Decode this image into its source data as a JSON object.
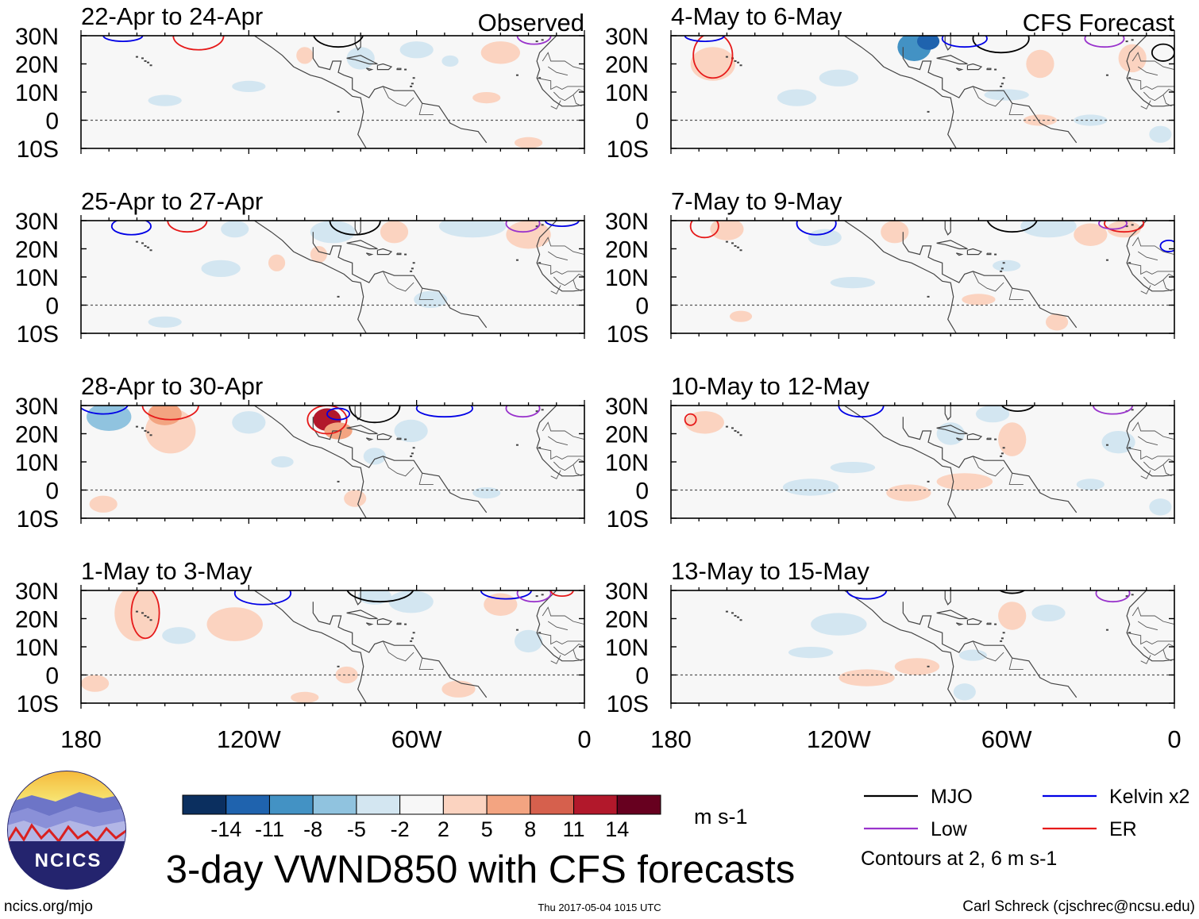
{
  "chart_data": {
    "type": "heatmap",
    "title": "3-day VWND850 with CFS forecasts",
    "variable": "VWND850",
    "units": "m s-1",
    "x_range": [
      180,
      0
    ],
    "x_ticks": [
      {
        "value": 180,
        "label": "180"
      },
      {
        "value": 120,
        "label": "120W"
      },
      {
        "value": 60,
        "label": "60W"
      },
      {
        "value": 0,
        "label": "0"
      }
    ],
    "y_range": [
      -10,
      30
    ],
    "y_ticks": [
      {
        "value": 30,
        "label": "30N"
      },
      {
        "value": 20,
        "label": "20N"
      },
      {
        "value": 10,
        "label": "10N"
      },
      {
        "value": 0,
        "label": "0"
      },
      {
        "value": -10,
        "label": "10S"
      }
    ],
    "colorbar": {
      "colors": [
        "#0b2f5f",
        "#1f63ae",
        "#4392c4",
        "#90c3df",
        "#d3e6f1",
        "#f7f7f7",
        "#fbd3c0",
        "#f3a481",
        "#d6604d",
        "#b2182b",
        "#67001f"
      ],
      "labels": [
        "-14",
        "-11",
        "-8",
        "-5",
        "-2",
        "2",
        "5",
        "8",
        "11",
        "14"
      ]
    },
    "panels": [
      {
        "title": "22-Apr to 24-Apr",
        "tag": "Observed",
        "blobs": [
          [
            60,
            25,
            6,
            3,
            -4
          ],
          [
            80,
            22,
            5,
            4,
            -3
          ],
          [
            30,
            24,
            7,
            4,
            4
          ],
          [
            48,
            21,
            3,
            2,
            -3
          ],
          [
            120,
            12,
            6,
            2,
            -2
          ],
          [
            150,
            7,
            6,
            2,
            -2
          ],
          [
            100,
            23,
            3,
            3,
            2
          ],
          [
            35,
            8,
            5,
            2,
            2
          ],
          [
            20,
            -8,
            5,
            2,
            2
          ]
        ],
        "contours": [
          {
            "type": "ER",
            "center": [
              138,
              30
            ],
            "rx": 9,
            "ry": 5
          },
          {
            "type": "Kelvin",
            "center": [
              165,
              30
            ],
            "rx": 7,
            "ry": 2
          },
          {
            "type": "MJO",
            "center": [
              88,
              31
            ],
            "rx": 9,
            "ry": 5
          },
          {
            "type": "Low",
            "center": [
              18,
              30
            ],
            "rx": 6,
            "ry": 3
          }
        ]
      },
      {
        "title": "25-Apr to 27-Apr",
        "tag": "",
        "blobs": [
          [
            40,
            28,
            12,
            4,
            -4
          ],
          [
            90,
            26,
            8,
            4,
            -3
          ],
          [
            125,
            27,
            5,
            3,
            -3
          ],
          [
            20,
            25,
            8,
            5,
            3
          ],
          [
            68,
            26,
            5,
            4,
            3
          ],
          [
            130,
            13,
            7,
            3,
            -2
          ],
          [
            55,
            2,
            6,
            3,
            -2
          ],
          [
            150,
            -6,
            6,
            2,
            -2
          ],
          [
            95,
            18,
            3,
            3,
            2
          ],
          [
            110,
            15,
            3,
            3,
            2
          ]
        ],
        "contours": [
          {
            "type": "Kelvin",
            "center": [
              162,
              28
            ],
            "rx": 7,
            "ry": 3
          },
          {
            "type": "ER",
            "center": [
              142,
              30
            ],
            "rx": 7,
            "ry": 4
          },
          {
            "type": "MJO",
            "center": [
              82,
              30
            ],
            "rx": 9,
            "ry": 5
          },
          {
            "type": "Low",
            "center": [
              22,
              29
            ],
            "rx": 6,
            "ry": 3
          },
          {
            "type": "Kelvin",
            "center": [
              8,
              30
            ],
            "rx": 6,
            "ry": 2
          }
        ]
      },
      {
        "title": "28-Apr to 30-Apr",
        "tag": "",
        "blobs": [
          [
            170,
            26,
            8,
            5,
            -6
          ],
          [
            148,
            21,
            9,
            8,
            4
          ],
          [
            150,
            27,
            6,
            4,
            7
          ],
          [
            92,
            25,
            5,
            4,
            12
          ],
          [
            88,
            21,
            5,
            3,
            7
          ],
          [
            62,
            21,
            6,
            4,
            -3
          ],
          [
            120,
            24,
            6,
            4,
            -2
          ],
          [
            75,
            12,
            4,
            3,
            -2
          ],
          [
            82,
            -3,
            4,
            3,
            3
          ],
          [
            35,
            -1,
            5,
            2,
            -2
          ],
          [
            172,
            -5,
            5,
            3,
            3
          ],
          [
            108,
            10,
            4,
            2,
            -2
          ]
        ],
        "contours": [
          {
            "type": "Kelvin",
            "center": [
              172,
              31
            ],
            "rx": 9,
            "ry": 4
          },
          {
            "type": "ER",
            "center": [
              148,
              30
            ],
            "rx": 10,
            "ry": 5
          },
          {
            "type": "ER",
            "center": [
              92,
              25
            ],
            "rx": 7,
            "ry": 5
          },
          {
            "type": "MJO",
            "center": [
              75,
              30
            ],
            "rx": 9,
            "ry": 6
          },
          {
            "type": "Kelvin",
            "center": [
              50,
              29
            ],
            "rx": 10,
            "ry": 3
          },
          {
            "type": "Low",
            "center": [
              22,
              29
            ],
            "rx": 6,
            "ry": 3
          },
          {
            "type": "Kelvin",
            "center": [
              88,
              27
            ],
            "rx": 4,
            "ry": 2
          }
        ]
      },
      {
        "title": "1-May to 3-May",
        "tag": "",
        "blobs": [
          [
            160,
            22,
            8,
            10,
            4
          ],
          [
            125,
            18,
            10,
            6,
            3
          ],
          [
            62,
            26,
            8,
            4,
            -3
          ],
          [
            75,
            28,
            6,
            3,
            -3
          ],
          [
            30,
            25,
            6,
            4,
            3
          ],
          [
            20,
            12,
            5,
            4,
            -2
          ],
          [
            145,
            14,
            6,
            3,
            -2
          ],
          [
            45,
            -5,
            6,
            3,
            3
          ],
          [
            175,
            -3,
            5,
            3,
            3
          ],
          [
            100,
            -8,
            5,
            2,
            2
          ],
          [
            85,
            0,
            4,
            3,
            3
          ]
        ],
        "contours": [
          {
            "type": "ER",
            "center": [
              157,
              22
            ],
            "rx": 5,
            "ry": 9
          },
          {
            "type": "Kelvin",
            "center": [
              115,
              29
            ],
            "rx": 10,
            "ry": 4
          },
          {
            "type": "MJO",
            "center": [
              73,
              31
            ],
            "rx": 12,
            "ry": 5
          },
          {
            "type": "Kelvin",
            "center": [
              28,
              30
            ],
            "rx": 9,
            "ry": 3
          },
          {
            "type": "Low",
            "center": [
              18,
              29
            ],
            "rx": 6,
            "ry": 3
          },
          {
            "type": "ER",
            "center": [
              8,
              30
            ],
            "rx": 4,
            "ry": 2
          }
        ]
      },
      {
        "title": "4-May to 6-May",
        "tag": "CFS Forecast",
        "blobs": [
          [
            93,
            26,
            6,
            5,
            -10
          ],
          [
            88,
            28,
            4,
            3,
            -13
          ],
          [
            165,
            20,
            8,
            6,
            3
          ],
          [
            48,
            20,
            5,
            5,
            3
          ],
          [
            15,
            22,
            5,
            5,
            3
          ],
          [
            120,
            15,
            7,
            3,
            -2
          ],
          [
            60,
            9,
            8,
            2,
            -2
          ],
          [
            135,
            8,
            7,
            3,
            -2
          ],
          [
            48,
            0,
            6,
            2,
            2
          ],
          [
            30,
            0,
            6,
            2,
            -2
          ],
          [
            5,
            -5,
            4,
            3,
            -2
          ]
        ],
        "contours": [
          {
            "type": "ER",
            "center": [
              165,
              23
            ],
            "rx": 7,
            "ry": 8
          },
          {
            "type": "Kelvin",
            "center": [
              168,
              30
            ],
            "rx": 7,
            "ry": 2
          },
          {
            "type": "MJO",
            "center": [
              62,
              29
            ],
            "rx": 10,
            "ry": 5
          },
          {
            "type": "Kelvin",
            "center": [
              75,
              29
            ],
            "rx": 8,
            "ry": 3
          },
          {
            "type": "Low",
            "center": [
              25,
              29
            ],
            "rx": 7,
            "ry": 3
          },
          {
            "type": "MJO",
            "center": [
              4,
              24
            ],
            "rx": 4,
            "ry": 3
          }
        ]
      },
      {
        "title": "7-May to 9-May",
        "tag": "",
        "blobs": [
          [
            160,
            27,
            6,
            4,
            4
          ],
          [
            100,
            26,
            5,
            4,
            4
          ],
          [
            45,
            28,
            10,
            4,
            -4
          ],
          [
            30,
            25,
            6,
            4,
            3
          ],
          [
            18,
            27,
            6,
            3,
            4
          ],
          [
            125,
            24,
            6,
            3,
            -2
          ],
          [
            115,
            8,
            8,
            2,
            -2
          ],
          [
            70,
            2,
            6,
            2,
            2
          ],
          [
            42,
            -6,
            4,
            3,
            3
          ],
          [
            155,
            -4,
            4,
            2,
            2
          ],
          [
            60,
            14,
            5,
            2,
            -2
          ]
        ],
        "contours": [
          {
            "type": "ER",
            "center": [
              168,
              28
            ],
            "rx": 5,
            "ry": 4
          },
          {
            "type": "Kelvin",
            "center": [
              128,
              29
            ],
            "rx": 7,
            "ry": 4
          },
          {
            "type": "MJO",
            "center": [
              58,
              31
            ],
            "rx": 9,
            "ry": 5
          },
          {
            "type": "ER",
            "center": [
              18,
              29
            ],
            "rx": 7,
            "ry": 3
          },
          {
            "type": "Low",
            "center": [
              22,
              29
            ],
            "rx": 5,
            "ry": 2
          },
          {
            "type": "Kelvin",
            "center": [
              2,
              21
            ],
            "rx": 3,
            "ry": 2
          }
        ]
      },
      {
        "title": "10-May to 12-May",
        "tag": "",
        "blobs": [
          [
            168,
            24,
            7,
            4,
            2
          ],
          [
            58,
            18,
            5,
            6,
            3
          ],
          [
            65,
            27,
            6,
            3,
            -3
          ],
          [
            80,
            20,
            5,
            4,
            -2
          ],
          [
            95,
            -1,
            8,
            3,
            3
          ],
          [
            75,
            3,
            10,
            3,
            3
          ],
          [
            130,
            1,
            10,
            3,
            -2
          ],
          [
            115,
            8,
            8,
            2,
            -2
          ],
          [
            20,
            17,
            6,
            4,
            -2
          ],
          [
            30,
            2,
            5,
            2,
            -2
          ],
          [
            5,
            -6,
            4,
            3,
            -2
          ]
        ],
        "contours": [
          {
            "type": "ER",
            "center": [
              173,
              25
            ],
            "rx": 2,
            "ry": 2
          },
          {
            "type": "Kelvin",
            "center": [
              112,
              30
            ],
            "rx": 8,
            "ry": 4
          },
          {
            "type": "MJO",
            "center": [
              56,
              31
            ],
            "rx": 6,
            "ry": 3
          },
          {
            "type": "Low",
            "center": [
              22,
              30
            ],
            "rx": 7,
            "ry": 3
          }
        ]
      },
      {
        "title": "13-May to 15-May",
        "tag": "",
        "blobs": [
          [
            58,
            21,
            5,
            5,
            3
          ],
          [
            120,
            18,
            10,
            4,
            -2
          ],
          [
            110,
            -1,
            10,
            3,
            3
          ],
          [
            92,
            3,
            8,
            3,
            3
          ],
          [
            130,
            8,
            8,
            2,
            -2
          ],
          [
            72,
            7,
            5,
            2,
            -2
          ],
          [
            45,
            22,
            6,
            3,
            -2
          ],
          [
            75,
            -6,
            4,
            3,
            -2
          ]
        ],
        "contours": [
          {
            "type": "Kelvin",
            "center": [
              110,
              30
            ],
            "rx": 7,
            "ry": 3
          },
          {
            "type": "MJO",
            "center": [
              58,
              31
            ],
            "rx": 5,
            "ry": 2
          },
          {
            "type": "Low",
            "center": [
              22,
              29
            ],
            "rx": 6,
            "ry": 3
          }
        ]
      }
    ]
  },
  "legend": {
    "items": [
      {
        "label": "MJO",
        "color": "#000000"
      },
      {
        "label": "Kelvin x2",
        "color": "#0000e6"
      },
      {
        "label": "Low",
        "color": "#9933cc"
      },
      {
        "label": "ER",
        "color": "#e61a1a"
      }
    ],
    "note": "Contours at 2, 6 m s-1"
  },
  "logo_text": "NCICS",
  "footer": {
    "website": "ncics.org/mjo",
    "timestamp": "Thu 2017-05-04 1015 UTC",
    "author": "Carl Schreck (cjschrec@ncsu.edu)"
  }
}
